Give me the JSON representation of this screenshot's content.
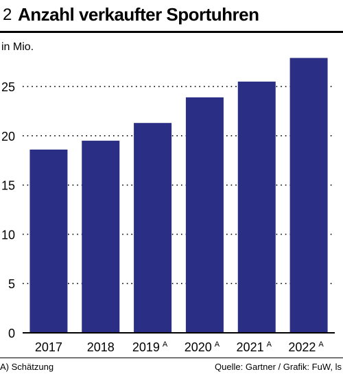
{
  "header": {
    "number": "2",
    "title": "Anzahl verkaufter Sportuhren"
  },
  "unit_label": "in Mio.",
  "footer": {
    "footnote": "A) Schätzung",
    "source": "Quelle: Gartner / Grafik: FuW, ls"
  },
  "chart_data": {
    "type": "bar",
    "categories": [
      "2017",
      "2018",
      "2019",
      "2020",
      "2021",
      "2022"
    ],
    "category_marks": [
      "",
      "",
      "A",
      "A",
      "A",
      "A"
    ],
    "values": [
      18.6,
      19.5,
      21.3,
      23.9,
      25.5,
      27.9
    ],
    "ylabel": "in Mio.",
    "ylim": [
      0,
      28
    ],
    "yticks": [
      0,
      5,
      10,
      15,
      20,
      25
    ],
    "grid": "dotted",
    "colors": {
      "bar": "#2b2e85",
      "axis": "#000000",
      "grid": "#000000"
    }
  }
}
